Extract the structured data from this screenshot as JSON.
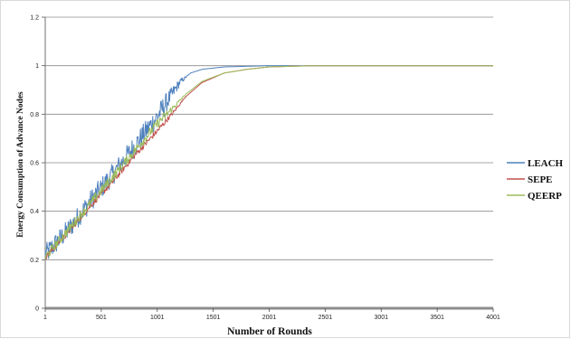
{
  "chart_data": {
    "type": "line",
    "xlabel": "Number of Rounds",
    "ylabel": "Energy Consumption of Advance Nodes",
    "xlim": [
      1,
      4001
    ],
    "ylim": [
      0,
      1.2
    ],
    "x_ticks": [
      "1",
      "501",
      "1001",
      "1501",
      "2001",
      "2501",
      "3001",
      "3501",
      "4001"
    ],
    "y_ticks": [
      "0",
      "0.2",
      "0.4",
      "0.6",
      "0.8",
      "1",
      "1.2"
    ],
    "grid": "horizontal",
    "legend_position": "right",
    "series": [
      {
        "name": "LEACH",
        "color": "#4f81bd",
        "noise": 0.045,
        "points": [
          [
            1,
            0.22
          ],
          [
            200,
            0.32
          ],
          [
            400,
            0.44
          ],
          [
            600,
            0.55
          ],
          [
            800,
            0.67
          ],
          [
            1000,
            0.79
          ],
          [
            1100,
            0.86
          ],
          [
            1200,
            0.93
          ],
          [
            1300,
            0.97
          ],
          [
            1400,
            0.985
          ],
          [
            1600,
            0.995
          ],
          [
            2000,
            1.0
          ],
          [
            4001,
            1.0
          ]
        ]
      },
      {
        "name": "SEPE",
        "color": "#c0504d",
        "noise": 0.012,
        "points": [
          [
            1,
            0.21
          ],
          [
            200,
            0.31
          ],
          [
            400,
            0.42
          ],
          [
            600,
            0.52
          ],
          [
            800,
            0.63
          ],
          [
            1000,
            0.73
          ],
          [
            1150,
            0.81
          ],
          [
            1250,
            0.87
          ],
          [
            1400,
            0.93
          ],
          [
            1600,
            0.97
          ],
          [
            1800,
            0.985
          ],
          [
            2000,
            0.995
          ],
          [
            2400,
            1.0
          ],
          [
            4001,
            1.0
          ]
        ]
      },
      {
        "name": "QEERP",
        "color": "#9bbb59",
        "noise": 0.02,
        "points": [
          [
            1,
            0.21
          ],
          [
            200,
            0.32
          ],
          [
            400,
            0.43
          ],
          [
            600,
            0.54
          ],
          [
            800,
            0.65
          ],
          [
            1000,
            0.76
          ],
          [
            1150,
            0.83
          ],
          [
            1250,
            0.88
          ],
          [
            1400,
            0.935
          ],
          [
            1600,
            0.97
          ],
          [
            1800,
            0.985
          ],
          [
            2000,
            0.995
          ],
          [
            2400,
            1.0
          ],
          [
            4001,
            1.0
          ]
        ]
      }
    ]
  }
}
